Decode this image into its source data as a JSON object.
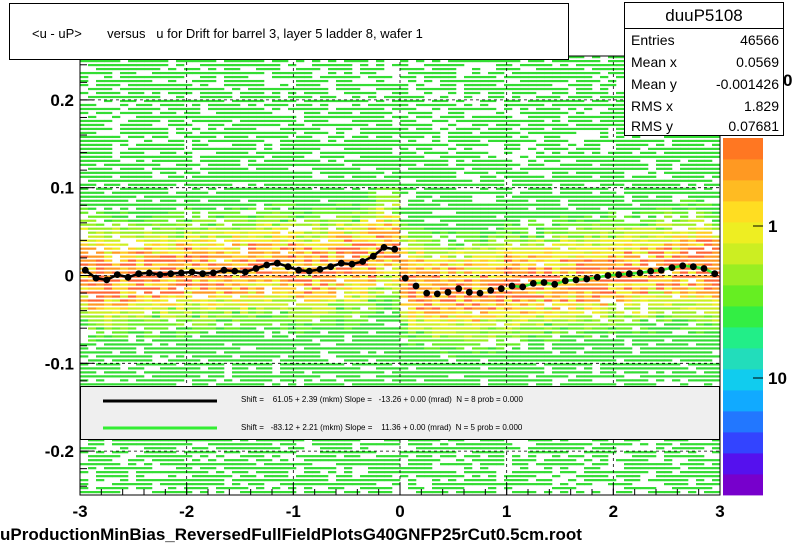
{
  "chart_data": {
    "type": "scatter",
    "title": "<u - uP>       versus   u for Drift for barrel 3, layer 5 ladder 8, wafer 1",
    "xlabel": "",
    "ylabel": "",
    "xlim": [
      -3,
      3
    ],
    "ylim": [
      -0.25,
      0.25
    ],
    "x_ticks": [
      -3,
      -2,
      -1,
      0,
      1,
      2,
      3
    ],
    "y_ticks": [
      -0.2,
      -0.1,
      0,
      0.1,
      0.2
    ],
    "z_ticks": [
      {
        "label": "1",
        "value": 1
      },
      {
        "label": "10",
        "value": 10
      },
      {
        "label": "0",
        "value": 0
      }
    ],
    "grid": true,
    "profile_series": {
      "name": "",
      "x": [
        -2.95,
        -2.85,
        -2.75,
        -2.65,
        -2.55,
        -2.45,
        -2.35,
        -2.25,
        -2.15,
        -2.05,
        -1.95,
        -1.85,
        -1.75,
        -1.65,
        -1.55,
        -1.45,
        -1.35,
        -1.25,
        -1.15,
        -1.05,
        -0.95,
        -0.85,
        -0.75,
        -0.65,
        -0.55,
        -0.45,
        -0.35,
        -0.25,
        -0.15,
        -0.05,
        0.05,
        0.15,
        0.25,
        0.35,
        0.45,
        0.55,
        0.65,
        0.75,
        0.85,
        0.95,
        1.05,
        1.15,
        1.25,
        1.35,
        1.45,
        1.55,
        1.65,
        1.75,
        1.85,
        1.95,
        2.05,
        2.15,
        2.25,
        2.35,
        2.45,
        2.55,
        2.65,
        2.75,
        2.85,
        2.95
      ],
      "y": [
        0.006,
        -0.003,
        -0.005,
        0.001,
        -0.002,
        0.002,
        0.003,
        0.001,
        0.002,
        0.003,
        0.004,
        0.002,
        0.003,
        0.006,
        0.005,
        0.004,
        0.008,
        0.012,
        0.014,
        0.01,
        0.006,
        0.005,
        0.007,
        0.01,
        0.014,
        0.013,
        0.016,
        0.022,
        0.032,
        0.03,
        -0.003,
        -0.012,
        -0.02,
        -0.021,
        -0.019,
        -0.015,
        -0.019,
        -0.02,
        -0.017,
        -0.015,
        -0.012,
        -0.013,
        -0.009,
        -0.008,
        -0.01,
        -0.006,
        -0.005,
        -0.004,
        -0.002,
        0.0,
        0.001,
        0.002,
        0.003,
        0.005,
        0.006,
        0.009,
        0.011,
        0.01,
        0.008,
        0.002
      ]
    },
    "fit_lines": [
      {
        "color": "#000000",
        "x_range": [
          -3,
          0
        ],
        "label": "Shift =    61.05 + 2.39 (mkm) Slope =   -13.26 + 0.00 (mrad)  N = 8 prob = 0.000"
      },
      {
        "color": "#33ee33",
        "x_range": [
          1.0,
          3.0
        ],
        "label": "Shift =   -83.12 + 2.21 (mkm) Slope =    11.36 + 0.00 (mrad)  N = 5 prob = 0.000"
      }
    ],
    "stats": {
      "name": "duuP5108",
      "rows": [
        {
          "key": "Entries",
          "value": "46566"
        },
        {
          "key": "Mean x",
          "value": "0.0569"
        },
        {
          "key": "Mean y",
          "value": "-0.001426"
        },
        {
          "key": "RMS x",
          "value": "1.829"
        },
        {
          "key": "RMS y",
          "value": "0.07681"
        }
      ]
    },
    "footer": "uProductionMinBias_ReversedFullFieldPlotsG40GNFP25rCut0.5cm.root"
  }
}
